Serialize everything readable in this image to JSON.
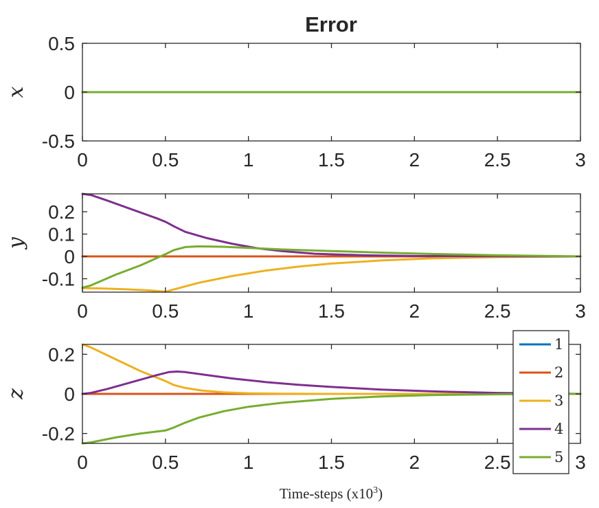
{
  "chart_data": {
    "type": "line",
    "title": "Error",
    "xlabel": "Time-steps (x10",
    "xlabel_sup": "3",
    "xlabel_close": ")",
    "xlim": [
      0,
      3
    ],
    "xticks": [
      0,
      0.5,
      1,
      1.5,
      2,
      2.5,
      3
    ],
    "xtick_labels": [
      "0",
      "0.5",
      "1",
      "1.5",
      "2",
      "2.5",
      "3"
    ],
    "grid": false,
    "legend_position": "bottom-right of last panel",
    "legend": [
      "1",
      "2",
      "3",
      "4",
      "5"
    ],
    "colors": [
      "#0072BD",
      "#D95319",
      "#EDB120",
      "#7E2F8E",
      "#77AC30"
    ],
    "panels": [
      {
        "ylabel": "x",
        "ylim": [
          -0.5,
          0.5
        ],
        "yticks": [
          0.5,
          0,
          -0.5
        ],
        "ytick_labels": [
          "0.5",
          "0",
          "-0.5"
        ],
        "series": [
          {
            "x": [
              0,
              3
            ],
            "y": [
              0,
              0
            ]
          },
          {
            "x": [
              0,
              3
            ],
            "y": [
              0,
              0
            ]
          },
          {
            "x": [
              0,
              3
            ],
            "y": [
              0,
              0
            ]
          },
          {
            "x": [
              0,
              3
            ],
            "y": [
              0,
              0
            ]
          },
          {
            "x": [
              0,
              3
            ],
            "y": [
              0,
              0
            ]
          }
        ]
      },
      {
        "ylabel": "y",
        "ylim": [
          -0.16,
          0.28
        ],
        "yticks": [
          0.2,
          0.1,
          0,
          -0.1
        ],
        "ytick_labels": [
          "0.2",
          "0.1",
          "0",
          "-0.1"
        ],
        "series": [
          {
            "x": [
              0,
              3
            ],
            "y": [
              0,
              0
            ]
          },
          {
            "x": [
              0,
              3
            ],
            "y": [
              0,
              0
            ]
          },
          {
            "x": [
              0,
              0.1,
              0.25,
              0.4,
              0.5,
              0.55,
              0.7,
              0.9,
              1.1,
              1.3,
              1.5,
              1.8,
              2.1,
              2.5,
              3
            ],
            "y": [
              -0.142,
              -0.143,
              -0.147,
              -0.152,
              -0.158,
              -0.148,
              -0.118,
              -0.088,
              -0.064,
              -0.046,
              -0.032,
              -0.018,
              -0.009,
              -0.003,
              0
            ]
          },
          {
            "x": [
              0,
              0.05,
              0.15,
              0.3,
              0.45,
              0.5,
              0.55,
              0.62,
              0.75,
              0.9,
              1.05,
              1.2,
              1.4,
              1.7,
              2.0,
              2.5,
              3
            ],
            "y": [
              0.28,
              0.275,
              0.25,
              0.21,
              0.17,
              0.155,
              0.135,
              0.11,
              0.082,
              0.057,
              0.037,
              0.024,
              0.012,
              0.005,
              0.002,
              0.0005,
              0
            ]
          },
          {
            "x": [
              0,
              0.05,
              0.2,
              0.35,
              0.5,
              0.55,
              0.62,
              0.7,
              0.85,
              1.0,
              1.2,
              1.5,
              1.8,
              2.1,
              2.5,
              3
            ],
            "y": [
              -0.14,
              -0.13,
              -0.082,
              -0.04,
              0.01,
              0.028,
              0.042,
              0.045,
              0.043,
              0.038,
              0.031,
              0.024,
              0.017,
              0.011,
              0.005,
              0
            ]
          }
        ]
      },
      {
        "ylabel": "z",
        "ylim": [
          -0.25,
          0.25
        ],
        "yticks": [
          0.2,
          0,
          -0.2
        ],
        "ytick_labels": [
          "0.2",
          "0",
          "-0.2"
        ],
        "series": [
          {
            "x": [
              0,
              3
            ],
            "y": [
              0,
              0
            ]
          },
          {
            "x": [
              0,
              3
            ],
            "y": [
              0,
              0
            ]
          },
          {
            "x": [
              0,
              0.05,
              0.2,
              0.35,
              0.5,
              0.55,
              0.62,
              0.72,
              0.85,
              1.0,
              1.2,
              1.5,
              3
            ],
            "y": [
              0.25,
              0.235,
              0.175,
              0.115,
              0.065,
              0.045,
              0.03,
              0.017,
              0.008,
              0.003,
              0.001,
              0,
              0
            ]
          },
          {
            "x": [
              0,
              0.05,
              0.15,
              0.3,
              0.45,
              0.52,
              0.57,
              0.62,
              0.75,
              0.9,
              1.1,
              1.3,
              1.5,
              1.8,
              2.1,
              2.5,
              3
            ],
            "y": [
              0,
              0.005,
              0.025,
              0.06,
              0.095,
              0.11,
              0.113,
              0.11,
              0.095,
              0.078,
              0.06,
              0.046,
              0.035,
              0.022,
              0.013,
              0.005,
              0
            ]
          },
          {
            "x": [
              0,
              0.05,
              0.2,
              0.35,
              0.5,
              0.55,
              0.62,
              0.7,
              0.85,
              1.0,
              1.2,
              1.5,
              1.8,
              2.1,
              2.5,
              3
            ],
            "y": [
              -0.25,
              -0.245,
              -0.22,
              -0.2,
              -0.185,
              -0.17,
              -0.145,
              -0.12,
              -0.088,
              -0.065,
              -0.045,
              -0.025,
              -0.013,
              -0.006,
              -0.002,
              0
            ]
          }
        ]
      }
    ]
  }
}
